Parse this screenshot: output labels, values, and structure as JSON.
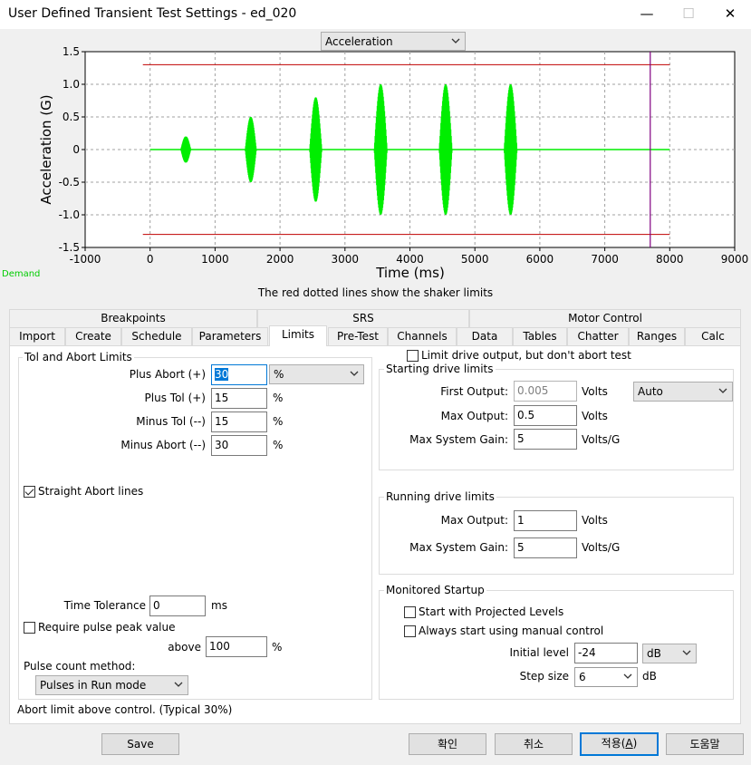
{
  "window": {
    "title": "User Defined Transient Test Settings - ed_020",
    "minimize": "—",
    "maximize": "☐",
    "close": "✕"
  },
  "plot": {
    "selector": "Acceleration",
    "ylabel": "Acceleration (G)",
    "xlabel": "Time (ms)",
    "demand_label": "Demand",
    "note": "The red dotted lines show the shaker limits",
    "colors": {
      "signal": "#00ee00",
      "limit": "#c00000",
      "cursor": "#800080",
      "grid": "#a0a0a0"
    }
  },
  "chart_data": {
    "type": "line",
    "xlim": [
      -1000,
      9000
    ],
    "ylim": [
      -1.5,
      1.5
    ],
    "xticks": [
      "-1000",
      "0",
      "1000",
      "2000",
      "3000",
      "4000",
      "5000",
      "6000",
      "7000",
      "8000",
      "9000"
    ],
    "yticks": [
      "1.5",
      "1.0",
      "0.5",
      "0",
      "-0.5",
      "-1.0",
      "-1.5"
    ],
    "xlabel": "Time (ms)",
    "ylabel": "Acceleration (G)",
    "grid": true,
    "series": [
      {
        "name": "Demand",
        "x_range": [
          0,
          8000
        ],
        "baseline": 0,
        "pulses": [
          {
            "t": 550,
            "amp": 0.2
          },
          {
            "t": 1550,
            "amp": 0.5
          },
          {
            "t": 2550,
            "amp": 0.8
          },
          {
            "t": 3550,
            "amp": 1.0
          },
          {
            "t": 4550,
            "amp": 1.0
          },
          {
            "t": 5550,
            "amp": 1.0
          }
        ]
      }
    ],
    "limits": {
      "upper": 1.3,
      "lower": -1.3,
      "x_range": [
        0,
        8000
      ]
    },
    "cursor_x": 7700
  },
  "tabs": {
    "row1": [
      "Breakpoints",
      "SRS",
      "Motor Control"
    ],
    "row2": [
      "Import",
      "Create",
      "Schedule",
      "Parameters",
      "Limits",
      "Pre-Test",
      "Channels",
      "Data",
      "Tables",
      "Chatter",
      "Ranges",
      "Calc"
    ],
    "active": "Limits"
  },
  "tol_abort": {
    "title": "Tol and Abort Limits",
    "plus_abort_label": "Plus Abort (+)",
    "plus_abort_value": "30",
    "unit_select": "%",
    "plus_tol_label": "Plus Tol (+)",
    "plus_tol_value": "15",
    "minus_tol_label": "Minus Tol (--)",
    "minus_tol_value": "15",
    "minus_abort_label": "Minus Abort (--)",
    "minus_abort_value": "30",
    "pct": "%",
    "straight_abort_label": "Straight Abort lines",
    "straight_abort_checked": true,
    "time_tolerance_label": "Time Tolerance",
    "time_tolerance_value": "0",
    "time_tolerance_unit": "ms",
    "require_peak_label": "Require pulse peak value",
    "require_peak_checked": false,
    "above_label": "above",
    "above_value": "100",
    "above_unit": "%",
    "pulse_count_label": "Pulse count method:",
    "pulse_count_value": "Pulses in Run mode"
  },
  "limit_drive": {
    "label": "Limit drive output, but don't abort test",
    "checked": false
  },
  "starting_drive": {
    "title": "Starting drive limits",
    "first_output_label": "First Output:",
    "first_output_value": "0.005",
    "first_output_unit": "Volts",
    "mode_select": "Auto",
    "max_output_label": "Max Output:",
    "max_output_value": "0.5",
    "max_output_unit": "Volts",
    "max_gain_label": "Max System Gain:",
    "max_gain_value": "5",
    "max_gain_unit": "Volts/G"
  },
  "running_drive": {
    "title": "Running drive limits",
    "max_output_label": "Max Output:",
    "max_output_value": "1",
    "max_output_unit": "Volts",
    "max_gain_label": "Max System Gain:",
    "max_gain_value": "5",
    "max_gain_unit": "Volts/G"
  },
  "monitored_startup": {
    "title": "Monitored Startup",
    "projected_label": "Start with Projected Levels",
    "projected_checked": false,
    "manual_label": "Always start using manual control",
    "manual_checked": false,
    "initial_level_label": "Initial level",
    "initial_level_value": "-24",
    "initial_level_unit": "dB",
    "step_size_label": "Step size",
    "step_size_value": "6",
    "step_size_unit": "dB"
  },
  "status": "Abort limit above control. (Typical 30%)",
  "buttons": {
    "save": "Save",
    "ok": "확인",
    "cancel": "취소",
    "apply_prefix": "적용(",
    "apply_key": "A",
    "apply_suffix": ")",
    "help": "도움말"
  }
}
